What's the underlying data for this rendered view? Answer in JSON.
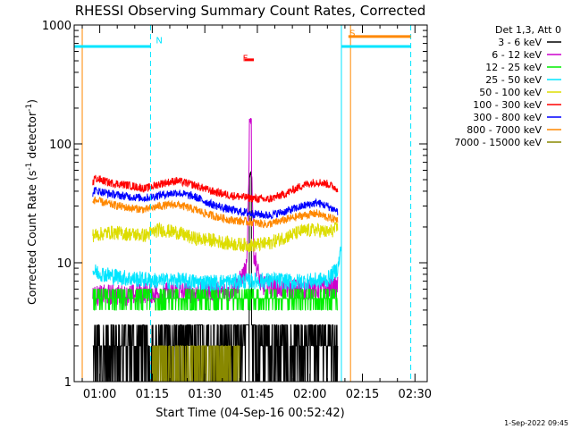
{
  "chart_data": {
    "type": "line",
    "title": "RHESSI Observing Summary Count Rates, Corrected",
    "xlabel": "Start Time (04-Sep-16 00:52:42)",
    "ylabel_main": "Corrected Count Rate (s",
    "ylabel_exp1": "-1",
    "ylabel_mid": " detector",
    "ylabel_exp2": "-1",
    "ylabel_end": ")",
    "yscale": "log",
    "ylim": [
      1,
      1000
    ],
    "y_ticks": [
      {
        "value": 1,
        "label": "1"
      },
      {
        "value": 10,
        "label": "10"
      },
      {
        "value": 100,
        "label": "100"
      },
      {
        "value": 1000,
        "label": "1000"
      }
    ],
    "xlim_minutes": [
      52.7,
      153.5
    ],
    "x_ticks": [
      {
        "minutes": 60,
        "label": "01:00"
      },
      {
        "minutes": 75,
        "label": "01:15"
      },
      {
        "minutes": 90,
        "label": "01:30"
      },
      {
        "minutes": 105,
        "label": "01:45"
      },
      {
        "minutes": 120,
        "label": "02:00"
      },
      {
        "minutes": 135,
        "label": "02:15"
      },
      {
        "minutes": 150,
        "label": "02:30"
      }
    ],
    "legend_title": "Det 1,3, Att 0",
    "legend_placement": "right",
    "series": [
      {
        "name": "3 - 6 keV",
        "color": "#000000",
        "base": [
          1.5,
          2.5
        ],
        "points": [
          [
            58,
            1.4
          ],
          [
            63,
            1.8
          ],
          [
            68,
            2.2
          ],
          [
            73,
            1.6
          ],
          [
            77,
            2.6
          ],
          [
            82,
            2.1
          ],
          [
            87,
            2.8
          ],
          [
            92,
            2.3
          ],
          [
            97,
            2.6
          ],
          [
            101,
            2.4
          ],
          [
            103,
            60
          ],
          [
            105,
            2.2
          ],
          [
            110,
            2.3
          ],
          [
            115,
            2.5
          ],
          [
            120,
            2.4
          ],
          [
            125,
            2.6
          ],
          [
            128,
            3.1
          ]
        ]
      },
      {
        "name": "6 - 12 keV",
        "color": "#cc00cc",
        "points": [
          [
            58,
            5.2
          ],
          [
            63,
            5.4
          ],
          [
            68,
            5.3
          ],
          [
            73,
            5.6
          ],
          [
            77,
            5.5
          ],
          [
            82,
            5.7
          ],
          [
            87,
            5.6
          ],
          [
            92,
            5.8
          ],
          [
            97,
            5.6
          ],
          [
            100,
            7
          ],
          [
            102,
            9
          ],
          [
            103,
            170
          ],
          [
            104,
            12
          ],
          [
            106,
            6.5
          ],
          [
            110,
            6.2
          ],
          [
            115,
            6.0
          ],
          [
            120,
            5.9
          ],
          [
            125,
            6.1
          ],
          [
            128,
            6.3
          ]
        ]
      },
      {
        "name": "12 - 25 keV",
        "color": "#00ee00",
        "points": [
          [
            58,
            5.0
          ],
          [
            63,
            5.1
          ],
          [
            68,
            5.0
          ],
          [
            73,
            5.2
          ],
          [
            77,
            5.1
          ],
          [
            82,
            5.2
          ],
          [
            87,
            5.1
          ],
          [
            92,
            5.0
          ],
          [
            97,
            5.1
          ],
          [
            103,
            5.2
          ],
          [
            110,
            5.1
          ],
          [
            115,
            5.0
          ],
          [
            120,
            5.1
          ],
          [
            125,
            5.2
          ],
          [
            128,
            5.3
          ]
        ]
      },
      {
        "name": "25 - 50 keV",
        "color": "#00e5ff",
        "points": [
          [
            58,
            8.5
          ],
          [
            63,
            7.8
          ],
          [
            68,
            7.4
          ],
          [
            73,
            7.2
          ],
          [
            77,
            7.0
          ],
          [
            82,
            7.1
          ],
          [
            87,
            6.9
          ],
          [
            92,
            6.8
          ],
          [
            97,
            6.9
          ],
          [
            103,
            7.0
          ],
          [
            110,
            7.1
          ],
          [
            115,
            6.9
          ],
          [
            120,
            7.0
          ],
          [
            125,
            7.2
          ],
          [
            128,
            9.0
          ],
          [
            129,
            14
          ]
        ]
      },
      {
        "name": "50 - 100 keV",
        "color": "#dddd00",
        "points": [
          [
            58,
            17
          ],
          [
            63,
            18
          ],
          [
            68,
            17.5
          ],
          [
            73,
            17
          ],
          [
            77,
            19
          ],
          [
            82,
            18
          ],
          [
            87,
            16
          ],
          [
            92,
            15.5
          ],
          [
            97,
            14.5
          ],
          [
            103,
            14
          ],
          [
            108,
            14.5
          ],
          [
            113,
            16.5
          ],
          [
            118,
            18.5
          ],
          [
            122,
            19
          ],
          [
            125,
            18
          ],
          [
            128,
            19.5
          ]
        ]
      },
      {
        "name": "100 - 300 keV",
        "color": "#ff0000",
        "points": [
          [
            58,
            52
          ],
          [
            63,
            47
          ],
          [
            68,
            45
          ],
          [
            73,
            42
          ],
          [
            77,
            46
          ],
          [
            82,
            49
          ],
          [
            87,
            45
          ],
          [
            92,
            40
          ],
          [
            97,
            37
          ],
          [
            103,
            35
          ],
          [
            108,
            34
          ],
          [
            113,
            38
          ],
          [
            118,
            45
          ],
          [
            122,
            48
          ],
          [
            125,
            46
          ],
          [
            128,
            42
          ]
        ]
      },
      {
        "name": "300 - 800 keV",
        "color": "#0000ff",
        "points": [
          [
            58,
            41
          ],
          [
            63,
            38
          ],
          [
            68,
            36
          ],
          [
            73,
            35
          ],
          [
            77,
            37
          ],
          [
            82,
            39
          ],
          [
            87,
            36
          ],
          [
            92,
            31
          ],
          [
            97,
            28
          ],
          [
            103,
            26
          ],
          [
            108,
            25
          ],
          [
            113,
            27
          ],
          [
            118,
            30
          ],
          [
            122,
            32
          ],
          [
            125,
            30
          ],
          [
            128,
            27
          ]
        ]
      },
      {
        "name": "800 - 7000 keV",
        "color": "#ff8800",
        "points": [
          [
            58,
            34
          ],
          [
            63,
            31
          ],
          [
            68,
            29
          ],
          [
            73,
            28
          ],
          [
            77,
            30
          ],
          [
            82,
            31
          ],
          [
            87,
            28
          ],
          [
            92,
            25
          ],
          [
            97,
            23
          ],
          [
            103,
            22
          ],
          [
            108,
            21
          ],
          [
            113,
            23
          ],
          [
            118,
            25
          ],
          [
            122,
            26
          ],
          [
            125,
            24
          ],
          [
            128,
            23
          ]
        ]
      },
      {
        "name": "7000 - 15000 keV",
        "color": "#888800",
        "points": [
          [
            75,
            1.6
          ],
          [
            80,
            1.8
          ],
          [
            85,
            1.7
          ],
          [
            90,
            1.9
          ],
          [
            95,
            1.6
          ],
          [
            100,
            1.5
          ]
        ]
      }
    ],
    "annotations": [
      {
        "label": "N",
        "color": "#00e5ff",
        "x_minutes": 74.5,
        "y": 750
      },
      {
        "label": "F",
        "color": "#ff0000",
        "x_minutes": 99.3,
        "y": 530
      },
      {
        "label": "S",
        "color": "#ff8800",
        "x_minutes": 129.8,
        "y": 860
      }
    ],
    "flag_lines": [
      {
        "name": "night-segment-1",
        "color": "#00e5ff",
        "y": 660,
        "x_start": 52.7,
        "x_end": 74.5
      },
      {
        "name": "night-segment-2",
        "color": "#00e5ff",
        "y": 660,
        "x_start": 129.0,
        "x_end": 148.8
      },
      {
        "name": "flare-marker",
        "color": "#ff0000",
        "y": 510,
        "x_start": 101.4,
        "x_end": 104.0
      },
      {
        "name": "saa-marker",
        "color": "#ff8800",
        "y": 800,
        "x_start": 131.0,
        "x_end": 148.8
      }
    ],
    "vertical_lines": [
      {
        "name": "night-start-line",
        "color": "#00e5ff",
        "x_minutes": 74.5,
        "dashed": true
      },
      {
        "name": "night-end-line",
        "color": "#00e5ff",
        "x_minutes": 129.0,
        "dashed": false
      },
      {
        "name": "saa-start-line",
        "color": "#ff8800",
        "x_minutes": 131.6,
        "dashed": false
      },
      {
        "name": "saa-end-line",
        "color": "#00e5ff",
        "x_minutes": 148.8,
        "dashed": true
      },
      {
        "name": "data-start-line",
        "color": "#ff8800",
        "x_minutes": 55.0,
        "dashed": false
      }
    ],
    "data_gap_minutes": [
      130.0,
      153.5
    ]
  },
  "footer_date": "1-Sep-2022 09:45"
}
